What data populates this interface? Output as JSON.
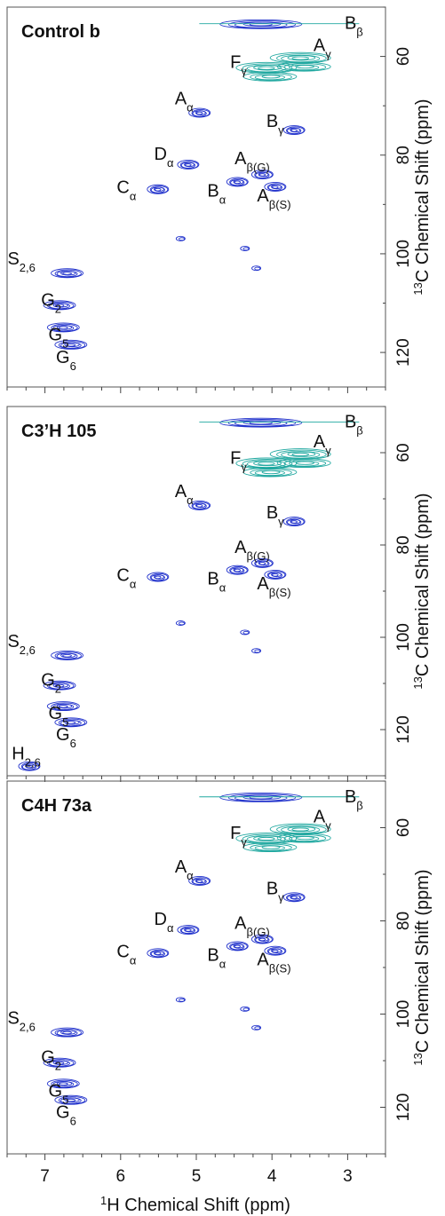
{
  "chart_data": [
    {
      "type": "heatmap",
      "title": "Control b",
      "xlabel_sup": "1",
      "xlabel": "H Chemical Shift (ppm)",
      "ylabel_sup": "13",
      "ylabel": "C Chemical Shift (ppm)",
      "xlim": [
        7.5,
        2.5
      ],
      "ylim": [
        50,
        127
      ],
      "y_ticks": [
        60,
        80,
        100,
        120
      ],
      "x_ticks": [
        7,
        6,
        5,
        4,
        3
      ],
      "peaks": [
        {
          "label": "A",
          "sub": "α",
          "x": 4.95,
          "y": 71.5
        },
        {
          "label": "A",
          "sub": "β(G)",
          "x": 4.12,
          "y": 84
        },
        {
          "label": "A",
          "sub": "β(S)",
          "x": 3.95,
          "y": 86.5
        },
        {
          "label": "A",
          "sub": "γ",
          "x": 3.5,
          "y": 60
        },
        {
          "label": "B",
          "sub": "α",
          "x": 4.45,
          "y": 85.5
        },
        {
          "label": "B",
          "sub": "β",
          "x": 3.2,
          "y": 53
        },
        {
          "label": "B",
          "sub": "γ",
          "x": 3.7,
          "y": 75
        },
        {
          "label": "C",
          "sub": "α",
          "x": 5.5,
          "y": 87
        },
        {
          "label": "D",
          "sub": "α",
          "x": 5.1,
          "y": 82
        },
        {
          "label": "F",
          "sub": "γ",
          "x": 3.95,
          "y": 62
        },
        {
          "label": "S",
          "sub": "2,6",
          "x": 6.7,
          "y": 104
        },
        {
          "label": "G",
          "sub": "2",
          "x": 6.8,
          "y": 110.5
        },
        {
          "label": "G",
          "sub": "5",
          "x": 6.75,
          "y": 115
        },
        {
          "label": "G",
          "sub": "6",
          "x": 6.65,
          "y": 118.5
        }
      ]
    },
    {
      "type": "heatmap",
      "title": "C3’H 105",
      "xlabel_sup": "1",
      "xlabel": "H Chemical Shift (ppm)",
      "ylabel_sup": "13",
      "ylabel": "C Chemical Shift (ppm)",
      "xlim": [
        7.5,
        2.5
      ],
      "ylim": [
        50,
        130
      ],
      "y_ticks": [
        60,
        80,
        100,
        120
      ],
      "x_ticks": [
        7,
        6,
        5,
        4,
        3
      ],
      "peaks": [
        {
          "label": "A",
          "sub": "α",
          "x": 4.95,
          "y": 71.5
        },
        {
          "label": "A",
          "sub": "β(G)",
          "x": 4.12,
          "y": 84
        },
        {
          "label": "A",
          "sub": "β(S)",
          "x": 3.95,
          "y": 86.5
        },
        {
          "label": "A",
          "sub": "γ",
          "x": 3.5,
          "y": 60
        },
        {
          "label": "B",
          "sub": "α",
          "x": 4.45,
          "y": 85.5
        },
        {
          "label": "B",
          "sub": "β",
          "x": 3.2,
          "y": 53
        },
        {
          "label": "B",
          "sub": "γ",
          "x": 3.7,
          "y": 75
        },
        {
          "label": "C",
          "sub": "α",
          "x": 5.5,
          "y": 87
        },
        {
          "label": "F",
          "sub": "γ",
          "x": 3.95,
          "y": 62
        },
        {
          "label": "S",
          "sub": "2,6",
          "x": 6.7,
          "y": 104
        },
        {
          "label": "G",
          "sub": "2",
          "x": 6.8,
          "y": 110.5
        },
        {
          "label": "G",
          "sub": "5",
          "x": 6.75,
          "y": 115
        },
        {
          "label": "G",
          "sub": "6",
          "x": 6.65,
          "y": 118.5
        },
        {
          "label": "H",
          "sub": "2,6",
          "x": 7.2,
          "y": 128
        }
      ]
    },
    {
      "type": "heatmap",
      "title": "C4H 73a",
      "xlabel_sup": "1",
      "xlabel": "H Chemical Shift (ppm)",
      "ylabel_sup": "13",
      "ylabel": "C Chemical Shift (ppm)",
      "xlim": [
        7.5,
        2.5
      ],
      "ylim": [
        50,
        130
      ],
      "y_ticks": [
        60,
        80,
        100,
        120
      ],
      "x_ticks": [
        7,
        6,
        5,
        4,
        3
      ],
      "peaks": [
        {
          "label": "A",
          "sub": "α",
          "x": 4.95,
          "y": 71.5
        },
        {
          "label": "A",
          "sub": "β(G)",
          "x": 4.12,
          "y": 84
        },
        {
          "label": "A",
          "sub": "β(S)",
          "x": 3.95,
          "y": 86.5
        },
        {
          "label": "A",
          "sub": "γ",
          "x": 3.5,
          "y": 60
        },
        {
          "label": "B",
          "sub": "α",
          "x": 4.45,
          "y": 85.5
        },
        {
          "label": "B",
          "sub": "β",
          "x": 3.2,
          "y": 53
        },
        {
          "label": "B",
          "sub": "γ",
          "x": 3.7,
          "y": 75
        },
        {
          "label": "C",
          "sub": "α",
          "x": 5.5,
          "y": 87
        },
        {
          "label": "D",
          "sub": "α",
          "x": 5.1,
          "y": 82
        },
        {
          "label": "F",
          "sub": "γ",
          "x": 3.95,
          "y": 62
        },
        {
          "label": "S",
          "sub": "2,6",
          "x": 6.7,
          "y": 104
        },
        {
          "label": "G",
          "sub": "2",
          "x": 6.8,
          "y": 110.5
        },
        {
          "label": "G",
          "sub": "5",
          "x": 6.75,
          "y": 115
        },
        {
          "label": "G",
          "sub": "6",
          "x": 6.65,
          "y": 118.5
        }
      ]
    }
  ],
  "colors": {
    "lignin_aromatic": "#2233cc",
    "polysaccharide": "#20a8a0"
  }
}
